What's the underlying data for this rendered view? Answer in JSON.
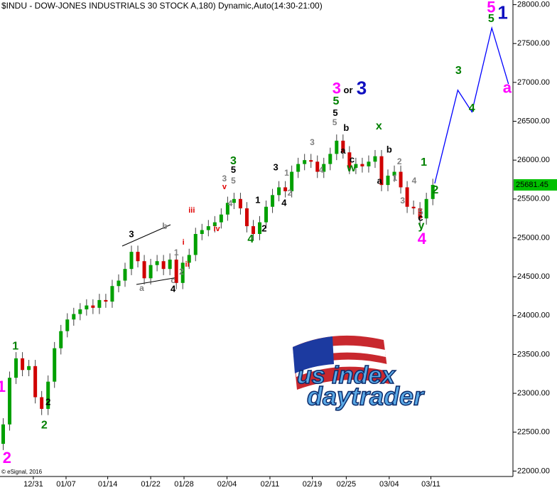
{
  "chart_data": {
    "type": "candlestick",
    "title": "$INDU - DOW-JONES INDUSTRIALS 30 STOCK A,180) Dynamic,Auto(14:30-21:00)",
    "footer": "© eSignal, 2016",
    "up_color": "#00a000",
    "down_color": "#d00000",
    "open": [
      22350,
      22600,
      23200,
      23450,
      23300,
      23350,
      22950,
      22800,
      23150,
      23580,
      23800,
      23950,
      24020,
      24080,
      24130,
      24100,
      24200,
      24180,
      24380,
      24450,
      24600,
      24820,
      24700,
      24480,
      24650,
      24700,
      24600,
      24720,
      24420,
      24680,
      24780,
      25050,
      25100,
      25150,
      25200,
      25300,
      25450,
      25500,
      25380,
      25150,
      25050,
      25200,
      25400,
      25550,
      25650,
      25600,
      25850,
      25950,
      26000,
      25980,
      25850,
      25950,
      26080,
      26250,
      26100,
      25900,
      25950,
      25920,
      25980,
      26050,
      25680,
      25800,
      25850,
      25650,
      25400,
      25380,
      25250,
      25500
    ],
    "high": [
      22680,
      23280,
      23530,
      23530,
      23430,
      23430,
      23030,
      23230,
      23660,
      23880,
      24030,
      24100,
      24160,
      24210,
      24210,
      24280,
      24280,
      24460,
      24530,
      24680,
      24900,
      24900,
      24780,
      24730,
      24780,
      24780,
      24800,
      24800,
      24760,
      24860,
      25130,
      25180,
      25230,
      25280,
      25380,
      25530,
      25580,
      25580,
      25460,
      25230,
      25280,
      25480,
      25630,
      25730,
      25730,
      25930,
      26030,
      26080,
      26080,
      26060,
      26030,
      26160,
      26330,
      26330,
      26180,
      26030,
      26030,
      26060,
      26130,
      26130,
      25880,
      25930,
      25930,
      25730,
      25480,
      25460,
      25580,
      25760
    ],
    "low": [
      22270,
      22520,
      23120,
      23220,
      23220,
      22870,
      22720,
      22720,
      23070,
      23500,
      23720,
      23870,
      23940,
      24000,
      24020,
      24020,
      24100,
      24100,
      24300,
      24370,
      24520,
      24620,
      24400,
      24400,
      24570,
      24520,
      24520,
      24340,
      24340,
      24600,
      24700,
      24970,
      25020,
      25070,
      25120,
      25220,
      25370,
      25300,
      25070,
      24970,
      24970,
      25120,
      25320,
      25470,
      25520,
      25520,
      25770,
      25870,
      25900,
      25770,
      25770,
      25870,
      26000,
      26020,
      25820,
      25820,
      25840,
      25840,
      25900,
      25600,
      25600,
      25720,
      25570,
      25320,
      25300,
      25170,
      25170,
      25420
    ],
    "close": [
      22600,
      23200,
      23450,
      23300,
      23350,
      22950,
      22800,
      23150,
      23580,
      23800,
      23950,
      24020,
      24080,
      24130,
      24100,
      24200,
      24180,
      24380,
      24450,
      24600,
      24820,
      24700,
      24480,
      24650,
      24700,
      24600,
      24720,
      24420,
      24680,
      24780,
      25050,
      25100,
      25150,
      25200,
      25300,
      25450,
      25500,
      25380,
      25150,
      25050,
      25200,
      25400,
      25550,
      25650,
      25600,
      25850,
      25950,
      26000,
      25980,
      25850,
      25950,
      26080,
      26250,
      26100,
      25900,
      25950,
      25920,
      25980,
      26050,
      25680,
      25800,
      25850,
      25650,
      25400,
      25380,
      25250,
      25500,
      25681.45
    ],
    "last_price": {
      "value": 25681.45,
      "label": "25681.45",
      "color": "#00c000"
    },
    "projection": {
      "color": "#0000ff",
      "x": [
        67.3,
        70.9,
        73.1,
        76.2,
        78.8
      ],
      "y": [
        25700,
        26900,
        26620,
        27700,
        26980
      ]
    },
    "xlim": [
      -0.5,
      79.5
    ],
    "ylim": [
      21930,
      28060
    ],
    "xticks": [
      {
        "value": 4.7,
        "label": "12/31"
      },
      {
        "value": 9.8,
        "label": "01/07"
      },
      {
        "value": 16.3,
        "label": "01/14"
      },
      {
        "value": 23.0,
        "label": "01/22"
      },
      {
        "value": 28.2,
        "label": "01/28"
      },
      {
        "value": 34.9,
        "label": "02/04"
      },
      {
        "value": 41.6,
        "label": "02/11"
      },
      {
        "value": 48.2,
        "label": "02/19"
      },
      {
        "value": 53.5,
        "label": "02/25"
      },
      {
        "value": 60.2,
        "label": "03/04"
      },
      {
        "value": 66.7,
        "label": "03/11"
      }
    ],
    "yticks": [
      {
        "value": 22000,
        "label": "22000.00"
      },
      {
        "value": 22500,
        "label": "22500.00"
      },
      {
        "value": 23000,
        "label": "23000.00"
      },
      {
        "value": 23500,
        "label": "23500.00"
      },
      {
        "value": 24000,
        "label": "24000.00"
      },
      {
        "value": 24500,
        "label": "24500.00"
      },
      {
        "value": 25000,
        "label": "25000.00"
      },
      {
        "value": 25500,
        "label": "25500.00"
      },
      {
        "value": 26000,
        "label": "26000.00"
      },
      {
        "value": 26500,
        "label": "26500.00"
      },
      {
        "value": 27000,
        "label": "27000.00"
      },
      {
        "value": 27500,
        "label": "27500.00"
      },
      {
        "value": 28000,
        "label": "28000.00"
      }
    ],
    "annotations": [
      {
        "text": "2",
        "x": 0.6,
        "y": 22156,
        "color": "#ff00ff"
      },
      {
        "text": "1",
        "x": -0.3,
        "y": 23070,
        "color": "#ff00ff"
      },
      {
        "text": "1",
        "x": 1.9,
        "y": 23603,
        "color": "#008000"
      },
      {
        "text": "2",
        "x": 6.4,
        "y": 22586,
        "color": "#008000"
      },
      {
        "text": "2",
        "x": 7.0,
        "y": 22880,
        "color": "#000000"
      },
      {
        "text": "3",
        "x": 20.0,
        "y": 25041,
        "color": "#000000"
      },
      {
        "text": "b",
        "x": 25.2,
        "y": 25142,
        "color": "#808080"
      },
      {
        "text": "a",
        "x": 21.6,
        "y": 24345,
        "color": "#808080"
      },
      {
        "text": "c",
        "x": 26.5,
        "y": 24446,
        "color": "#808080"
      },
      {
        "text": "4",
        "x": 26.5,
        "y": 24336,
        "color": "#000000"
      },
      {
        "text": "1",
        "x": 27.0,
        "y": 24803,
        "color": "#808080"
      },
      {
        "text": "2",
        "x": 27.8,
        "y": 24556,
        "color": "#808080"
      },
      {
        "text": "i",
        "x": 28.1,
        "y": 24940,
        "color": "#e00000"
      },
      {
        "text": "ii",
        "x": 28.7,
        "y": 24656,
        "color": "#e00000"
      },
      {
        "text": "iii",
        "x": 29.4,
        "y": 25353,
        "color": "#e00000"
      },
      {
        "text": "iv",
        "x": 33.3,
        "y": 25114,
        "color": "#e00000"
      },
      {
        "text": "v",
        "x": 34.5,
        "y": 25655,
        "color": "#e00000"
      },
      {
        "text": "3",
        "x": 34.5,
        "y": 25756,
        "color": "#808080"
      },
      {
        "text": "4",
        "x": 35.4,
        "y": 25435,
        "color": "#808080"
      },
      {
        "text": "5",
        "x": 35.9,
        "y": 25728,
        "color": "#808080"
      },
      {
        "text": "5",
        "x": 35.9,
        "y": 25866,
        "color": "#000000"
      },
      {
        "text": "3",
        "x": 35.9,
        "y": 25985,
        "color": "#008000"
      },
      {
        "text": "1",
        "x": 39.7,
        "y": 25481,
        "color": "#000000"
      },
      {
        "text": "2",
        "x": 40.7,
        "y": 25114,
        "color": "#000000"
      },
      {
        "text": "4",
        "x": 38.6,
        "y": 24977,
        "color": "#008000"
      },
      {
        "text": "3",
        "x": 42.5,
        "y": 25902,
        "color": "#000000"
      },
      {
        "text": "4",
        "x": 43.8,
        "y": 25444,
        "color": "#000000"
      },
      {
        "text": "1",
        "x": 44.2,
        "y": 25829,
        "color": "#808080"
      },
      {
        "text": "2",
        "x": 44.7,
        "y": 25572,
        "color": "#808080"
      },
      {
        "text": "3",
        "x": 48.2,
        "y": 26223,
        "color": "#808080"
      },
      {
        "text": "4",
        "x": 49.6,
        "y": 25866,
        "color": "#808080"
      },
      {
        "text": "3",
        "x": 52.0,
        "y": 26910,
        "color": "#ff00ff"
      },
      {
        "text": "or",
        "x": 53.8,
        "y": 26892,
        "color": "#000000"
      },
      {
        "text": "3",
        "x": 55.9,
        "y": 26910,
        "color": "#1010c0"
      },
      {
        "text": "5",
        "x": 51.9,
        "y": 26754,
        "color": "#008000"
      },
      {
        "text": "5",
        "x": 51.8,
        "y": 26598,
        "color": "#000000"
      },
      {
        "text": "5",
        "x": 51.7,
        "y": 26479,
        "color": "#808080"
      },
      {
        "text": "b",
        "x": 53.5,
        "y": 26406,
        "color": "#000000"
      },
      {
        "text": "a",
        "x": 53.0,
        "y": 26113,
        "color": "#000000"
      },
      {
        "text": "c",
        "x": 54.4,
        "y": 26003,
        "color": "#000000"
      },
      {
        "text": "w",
        "x": 54.3,
        "y": 25893,
        "color": "#008000"
      },
      {
        "text": "x",
        "x": 58.6,
        "y": 26433,
        "color": "#008000"
      },
      {
        "text": "a",
        "x": 58.7,
        "y": 25728,
        "color": "#000000"
      },
      {
        "text": "b",
        "x": 60.2,
        "y": 26131,
        "color": "#000000"
      },
      {
        "text": "2",
        "x": 61.8,
        "y": 25976,
        "color": "#808080"
      },
      {
        "text": "1",
        "x": 61.1,
        "y": 25765,
        "color": "#808080"
      },
      {
        "text": "3",
        "x": 62.3,
        "y": 25472,
        "color": "#808080"
      },
      {
        "text": "4",
        "x": 64.1,
        "y": 25728,
        "color": "#808080"
      },
      {
        "text": "5",
        "x": 65.1,
        "y": 25325,
        "color": "#808080"
      },
      {
        "text": "c",
        "x": 65.1,
        "y": 25252,
        "color": "#000000"
      },
      {
        "text": "y",
        "x": 65.2,
        "y": 25151,
        "color": "#008000"
      },
      {
        "text": "4",
        "x": 65.3,
        "y": 24977,
        "color": "#ff00ff"
      },
      {
        "text": "1",
        "x": 65.6,
        "y": 25967,
        "color": "#008000"
      },
      {
        "text": "2",
        "x": 67.4,
        "y": 25609,
        "color": "#008000"
      },
      {
        "text": "3",
        "x": 71.0,
        "y": 27148,
        "color": "#008000"
      },
      {
        "text": "4",
        "x": 73.1,
        "y": 26662,
        "color": "#008000"
      },
      {
        "text": "5",
        "x": 76.1,
        "y": 27817,
        "color": "#008000"
      },
      {
        "text": "5",
        "x": 76.1,
        "y": 27954,
        "color": "#ff00ff"
      },
      {
        "text": "1",
        "x": 77.9,
        "y": 27881,
        "color": "#1010c0"
      },
      {
        "text": "a",
        "x": 78.6,
        "y": 26919,
        "color": "#ff00ff"
      }
    ],
    "logo": {
      "line1": "us index",
      "line2": "daytrader"
    }
  }
}
